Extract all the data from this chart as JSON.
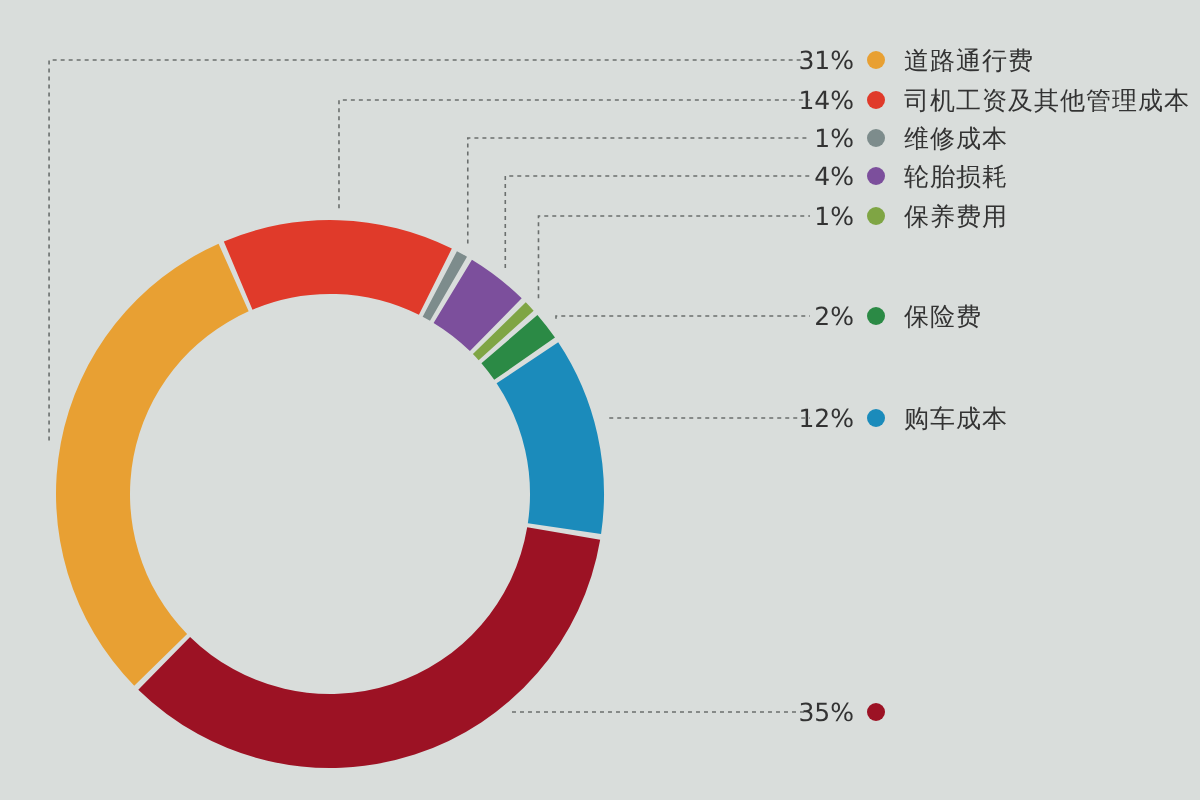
{
  "chart_data": {
    "type": "donut",
    "categories": [
      "道路通行费",
      "司机工资及其他管理成本",
      "维修成本",
      "轮胎损耗",
      "保养费用",
      "保险费",
      "购车成本",
      null
    ],
    "values": [
      31,
      14,
      1,
      4,
      1,
      2,
      12,
      35
    ],
    "colors": [
      "#e8a033",
      "#e03a2a",
      "#7d8c8c",
      "#7c4f9c",
      "#7fa544",
      "#2b8a45",
      "#1b8bbb",
      "#9c1224"
    ],
    "value_labels": [
      "31%",
      "14%",
      "1%",
      "4%",
      "1%",
      "2%",
      "12%",
      "35%"
    ],
    "legend": "right"
  }
}
